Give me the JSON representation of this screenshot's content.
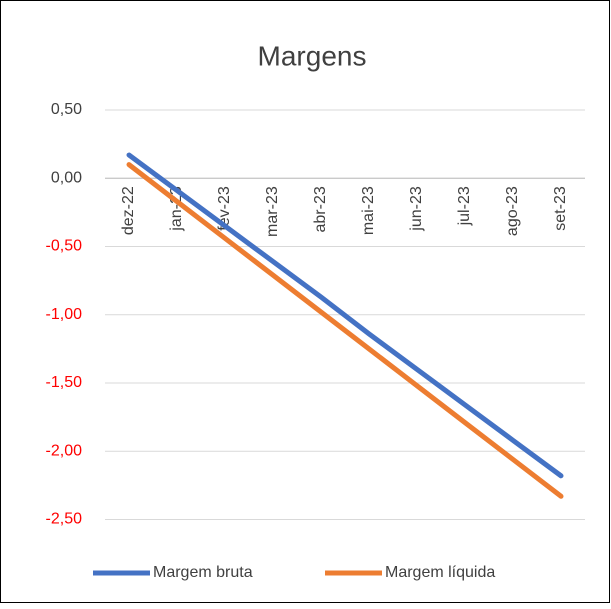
{
  "chart_data": {
    "type": "line",
    "title": "Margens",
    "categories": [
      "dez-22",
      "jan-23",
      "fev-23",
      "mar-23",
      "abr-23",
      "mai-23",
      "jun-23",
      "jul-23",
      "ago-23",
      "set-23"
    ],
    "series": [
      {
        "name": "Margem bruta",
        "color": "#4472c4",
        "values": [
          0.17,
          -0.09,
          -0.35,
          -0.61,
          -0.87,
          -1.14,
          -1.4,
          -1.66,
          -1.92,
          -2.18
        ]
      },
      {
        "name": "Margem líquida",
        "color": "#ed7d31",
        "values": [
          0.1,
          -0.17,
          -0.44,
          -0.71,
          -0.98,
          -1.25,
          -1.52,
          -1.79,
          -2.06,
          -2.33
        ]
      }
    ],
    "ylim": [
      -2.75,
      0.5
    ],
    "yticks": [
      {
        "value": 0.5,
        "label": "0,50"
      },
      {
        "value": 0,
        "label": "0,00"
      },
      {
        "value": -0.5,
        "label": "-0,50"
      },
      {
        "value": -1,
        "label": "-1,00"
      },
      {
        "value": -1.5,
        "label": "-1,50"
      },
      {
        "value": -2,
        "label": "-2,00"
      },
      {
        "value": -2.5,
        "label": "-2,50"
      }
    ],
    "negative_color": "#ff0000",
    "grid": true,
    "legend": "bottom"
  }
}
